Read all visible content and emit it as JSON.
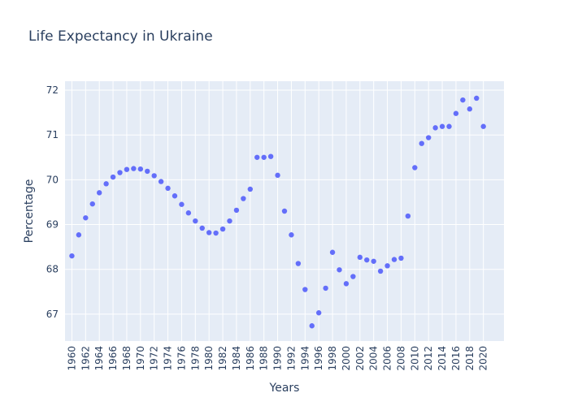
{
  "chart_data": {
    "type": "scatter",
    "title": "Life Expectancy in Ukraine",
    "xlabel": "Years",
    "ylabel": "Percentage",
    "xlim": [
      1959,
      2023
    ],
    "ylim": [
      66.4,
      72.2
    ],
    "x_ticks": [
      "1960",
      "1962",
      "1964",
      "1966",
      "1968",
      "1970",
      "1972",
      "1974",
      "1976",
      "1978",
      "1980",
      "1982",
      "1984",
      "1986",
      "1988",
      "1990",
      "1992",
      "1994",
      "1996",
      "1998",
      "2000",
      "2002",
      "2004",
      "2006",
      "2008",
      "2010",
      "2012",
      "2014",
      "2016",
      "2018",
      "2020"
    ],
    "y_ticks": [
      "67",
      "68",
      "69",
      "70",
      "71",
      "72"
    ],
    "marker_color": "#636efa",
    "plot_bg": "#e5ecf6",
    "grid": true,
    "x": [
      1960,
      1961,
      1962,
      1963,
      1964,
      1965,
      1966,
      1967,
      1968,
      1969,
      1970,
      1971,
      1972,
      1973,
      1974,
      1975,
      1976,
      1977,
      1978,
      1979,
      1980,
      1981,
      1982,
      1983,
      1984,
      1985,
      1986,
      1987,
      1988,
      1989,
      1990,
      1991,
      1992,
      1993,
      1994,
      1995,
      1996,
      1997,
      1998,
      1999,
      2000,
      2001,
      2002,
      2003,
      2004,
      2005,
      2006,
      2007,
      2008,
      2009,
      2010,
      2011,
      2012,
      2013,
      2014,
      2015,
      2016,
      2017,
      2018,
      2019,
      2020
    ],
    "y": [
      68.3,
      68.77,
      69.15,
      69.46,
      69.71,
      69.91,
      70.06,
      70.16,
      70.23,
      70.25,
      70.24,
      70.19,
      70.09,
      69.96,
      69.81,
      69.64,
      69.45,
      69.26,
      69.08,
      68.92,
      68.82,
      68.81,
      68.9,
      69.08,
      69.32,
      69.58,
      69.79,
      70.5,
      70.5,
      70.52,
      70.1,
      69.3,
      68.77,
      68.13,
      67.55,
      66.74,
      67.03,
      67.58,
      68.38,
      67.99,
      67.68,
      67.84,
      68.27,
      68.21,
      68.18,
      67.96,
      68.08,
      68.22,
      68.25,
      69.19,
      70.27,
      70.81,
      70.94,
      71.16,
      71.19,
      71.19,
      71.48,
      71.78,
      71.58,
      71.82,
      71.19
    ]
  }
}
